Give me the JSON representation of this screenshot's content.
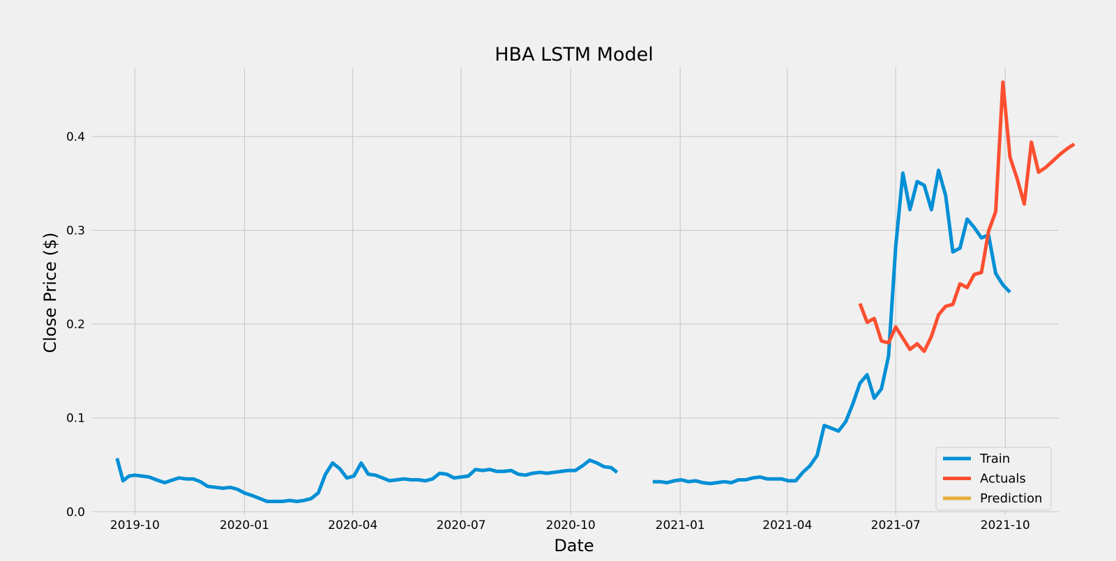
{
  "chart_data": {
    "type": "line",
    "title": "HBA LSTM Model",
    "xlabel": "Date",
    "ylabel": "Close Price ($)",
    "grid": true,
    "legend_position": "bottom-right",
    "xlim": [
      "2019-08-26",
      "2021-11-15"
    ],
    "ylim": [
      -0.0035,
      0.4735
    ],
    "x_ticks": [
      "2019-10-01",
      "2020-01-01",
      "2020-04-01",
      "2020-07-01",
      "2020-10-01",
      "2021-01-01",
      "2021-04-01",
      "2021-07-01",
      "2021-10-01"
    ],
    "x_tick_labels": [
      "2019-10",
      "2020-01",
      "2020-04",
      "2020-07",
      "2020-10",
      "2021-01",
      "2021-04",
      "2021-07",
      "2021-10"
    ],
    "y_ticks": [
      0.0,
      0.1,
      0.2,
      0.3,
      0.4
    ],
    "y_tick_labels": [
      "0.0",
      "0.1",
      "0.2",
      "0.3",
      "0.4"
    ],
    "series": [
      {
        "name": "Train",
        "color": "#008fd5",
        "segments": [
          [
            [
              "2019-09-16",
              0.057
            ],
            [
              "2019-09-21",
              0.033
            ],
            [
              "2019-09-26",
              0.038
            ],
            [
              "2019-10-01",
              0.039
            ],
            [
              "2019-10-07",
              0.038
            ],
            [
              "2019-10-13",
              0.037
            ],
            [
              "2019-10-19",
              0.034
            ],
            [
              "2019-10-26",
              0.031
            ],
            [
              "2019-11-02",
              0.034
            ],
            [
              "2019-11-07",
              0.036
            ],
            [
              "2019-11-13",
              0.035
            ],
            [
              "2019-11-19",
              0.035
            ],
            [
              "2019-11-25",
              0.032
            ],
            [
              "2019-12-01",
              0.027
            ],
            [
              "2019-12-08",
              0.026
            ],
            [
              "2019-12-14",
              0.025
            ],
            [
              "2019-12-20",
              0.026
            ],
            [
              "2019-12-26",
              0.024
            ],
            [
              "2020-01-01",
              0.02
            ],
            [
              "2020-01-08",
              0.017
            ],
            [
              "2020-01-14",
              0.014
            ],
            [
              "2020-01-20",
              0.011
            ],
            [
              "2020-01-26",
              0.011
            ],
            [
              "2020-02-02",
              0.011
            ],
            [
              "2020-02-08",
              0.012
            ],
            [
              "2020-02-14",
              0.011
            ],
            [
              "2020-02-20",
              0.012
            ],
            [
              "2020-02-26",
              0.014
            ],
            [
              "2020-03-03",
              0.02
            ],
            [
              "2020-03-09",
              0.04
            ],
            [
              "2020-03-15",
              0.052
            ],
            [
              "2020-03-21",
              0.046
            ],
            [
              "2020-03-27",
              0.036
            ],
            [
              "2020-04-02",
              0.038
            ],
            [
              "2020-04-08",
              0.052
            ],
            [
              "2020-04-14",
              0.04
            ],
            [
              "2020-04-20",
              0.039
            ],
            [
              "2020-04-26",
              0.036
            ],
            [
              "2020-05-02",
              0.033
            ],
            [
              "2020-05-08",
              0.034
            ],
            [
              "2020-05-14",
              0.035
            ],
            [
              "2020-05-20",
              0.034
            ],
            [
              "2020-05-26",
              0.034
            ],
            [
              "2020-06-01",
              0.033
            ],
            [
              "2020-06-07",
              0.035
            ],
            [
              "2020-06-13",
              0.041
            ],
            [
              "2020-06-19",
              0.04
            ],
            [
              "2020-06-25",
              0.036
            ],
            [
              "2020-07-01",
              0.037
            ],
            [
              "2020-07-07",
              0.038
            ],
            [
              "2020-07-13",
              0.045
            ],
            [
              "2020-07-19",
              0.044
            ],
            [
              "2020-07-25",
              0.045
            ],
            [
              "2020-07-31",
              0.043
            ],
            [
              "2020-08-06",
              0.043
            ],
            [
              "2020-08-12",
              0.044
            ],
            [
              "2020-08-18",
              0.04
            ],
            [
              "2020-08-24",
              0.039
            ],
            [
              "2020-08-30",
              0.041
            ],
            [
              "2020-09-05",
              0.042
            ],
            [
              "2020-09-11",
              0.041
            ],
            [
              "2020-09-17",
              0.042
            ],
            [
              "2020-09-23",
              0.043
            ],
            [
              "2020-09-29",
              0.044
            ],
            [
              "2020-10-05",
              0.044
            ],
            [
              "2020-10-11",
              0.049
            ],
            [
              "2020-10-17",
              0.055
            ],
            [
              "2020-10-23",
              0.052
            ],
            [
              "2020-10-29",
              0.048
            ],
            [
              "2020-11-04",
              0.047
            ],
            [
              "2020-11-09",
              0.042
            ]
          ],
          [
            [
              "2020-12-09",
              0.032
            ],
            [
              "2020-12-15",
              0.032
            ],
            [
              "2020-12-21",
              0.031
            ],
            [
              "2020-12-27",
              0.033
            ],
            [
              "2021-01-02",
              0.034
            ],
            [
              "2021-01-08",
              0.032
            ],
            [
              "2021-01-14",
              0.033
            ],
            [
              "2021-01-20",
              0.031
            ],
            [
              "2021-01-26",
              0.03
            ],
            [
              "2021-02-01",
              0.031
            ],
            [
              "2021-02-07",
              0.032
            ],
            [
              "2021-02-13",
              0.031
            ],
            [
              "2021-02-19",
              0.034
            ],
            [
              "2021-02-25",
              0.034
            ],
            [
              "2021-03-03",
              0.036
            ],
            [
              "2021-03-09",
              0.037
            ],
            [
              "2021-03-15",
              0.035
            ],
            [
              "2021-03-21",
              0.035
            ],
            [
              "2021-03-27",
              0.035
            ],
            [
              "2021-04-02",
              0.033
            ],
            [
              "2021-04-08",
              0.033
            ],
            [
              "2021-04-14",
              0.042
            ],
            [
              "2021-04-20",
              0.049
            ],
            [
              "2021-04-26",
              0.06
            ],
            [
              "2021-05-02",
              0.092
            ],
            [
              "2021-05-08",
              0.089
            ],
            [
              "2021-05-14",
              0.086
            ],
            [
              "2021-05-20",
              0.096
            ],
            [
              "2021-05-26",
              0.115
            ],
            [
              "2021-06-01",
              0.137
            ],
            [
              "2021-06-07",
              0.146
            ],
            [
              "2021-06-13",
              0.121
            ],
            [
              "2021-06-19",
              0.131
            ],
            [
              "2021-06-25",
              0.166
            ],
            [
              "2021-07-01",
              0.283
            ],
            [
              "2021-07-07",
              0.361
            ],
            [
              "2021-07-13",
              0.322
            ],
            [
              "2021-07-19",
              0.352
            ],
            [
              "2021-07-25",
              0.348
            ],
            [
              "2021-07-31",
              0.322
            ],
            [
              "2021-08-06",
              0.364
            ],
            [
              "2021-08-12",
              0.337
            ],
            [
              "2021-08-18",
              0.277
            ],
            [
              "2021-08-24",
              0.281
            ],
            [
              "2021-08-30",
              0.312
            ],
            [
              "2021-09-05",
              0.303
            ],
            [
              "2021-09-11",
              0.292
            ],
            [
              "2021-09-17",
              0.295
            ],
            [
              "2021-09-23",
              0.254
            ],
            [
              "2021-09-29",
              0.242
            ],
            [
              "2021-10-05",
              0.234
            ]
          ]
        ]
      },
      {
        "name": "Actuals",
        "color": "#fc4f30",
        "segments": [
          [
            [
              "2021-06-01",
              0.222
            ],
            [
              "2021-06-07",
              0.202
            ],
            [
              "2021-06-13",
              0.206
            ],
            [
              "2021-06-19",
              0.182
            ],
            [
              "2021-06-25",
              0.18
            ],
            [
              "2021-07-01",
              0.197
            ],
            [
              "2021-07-07",
              0.185
            ],
            [
              "2021-07-13",
              0.173
            ],
            [
              "2021-07-19",
              0.179
            ],
            [
              "2021-07-25",
              0.171
            ],
            [
              "2021-07-31",
              0.187
            ],
            [
              "2021-08-06",
              0.21
            ],
            [
              "2021-08-12",
              0.219
            ],
            [
              "2021-08-18",
              0.221
            ],
            [
              "2021-08-24",
              0.243
            ],
            [
              "2021-08-30",
              0.239
            ],
            [
              "2021-09-05",
              0.253
            ],
            [
              "2021-09-11",
              0.255
            ],
            [
              "2021-09-17",
              0.299
            ],
            [
              "2021-09-23",
              0.32
            ],
            [
              "2021-09-29",
              0.458
            ],
            [
              "2021-10-05",
              0.378
            ],
            [
              "2021-10-11",
              0.355
            ],
            [
              "2021-10-17",
              0.328
            ],
            [
              "2021-10-23",
              0.394
            ],
            [
              "2021-10-29",
              0.362
            ],
            [
              "2021-11-04",
              0.367
            ],
            [
              "2021-11-10",
              0.374
            ],
            [
              "2021-11-16",
              0.381
            ],
            [
              "2021-11-22",
              0.387
            ],
            [
              "2021-11-28",
              0.392
            ]
          ]
        ]
      },
      {
        "name": "Prediction",
        "color": "#e5ae38",
        "segments": []
      }
    ]
  }
}
